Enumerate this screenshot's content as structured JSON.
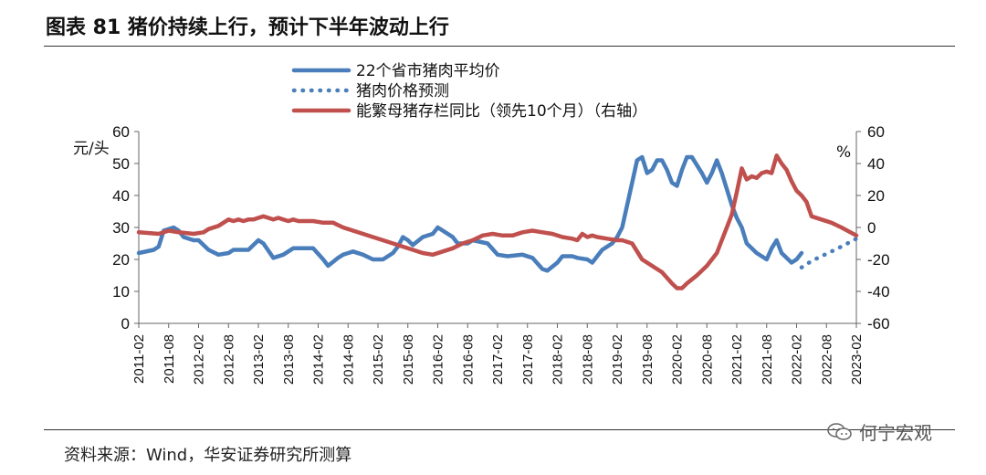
{
  "header": {
    "title": "图表 81 猪价持续上行，预计下半年波动上行"
  },
  "footer": {
    "source": "资料来源：Wind，华安证券研究所测算",
    "watermark": "何宁宏观"
  },
  "chart_data": {
    "type": "line",
    "left_axis": {
      "unit": "元/头",
      "range": [
        0,
        60
      ],
      "ticks": [
        0,
        10,
        20,
        30,
        40,
        50,
        60
      ]
    },
    "right_axis": {
      "unit": "%",
      "range": [
        -60,
        60
      ],
      "ticks": [
        -60,
        -40,
        -20,
        0,
        20,
        40,
        60
      ]
    },
    "x_tick_labels": [
      "2011-02",
      "2011-08",
      "2012-02",
      "2012-08",
      "2013-02",
      "2013-08",
      "2014-02",
      "2014-08",
      "2015-02",
      "2015-08",
      "2016-02",
      "2016-08",
      "2017-02",
      "2017-08",
      "2018-02",
      "2018-08",
      "2019-02",
      "2019-08",
      "2020-02",
      "2020-08",
      "2021-02",
      "2021-08",
      "2022-02",
      "2022-08",
      "2023-02"
    ],
    "x_range_months": [
      0,
      144
    ],
    "series": [
      {
        "name": "22个省市猪肉平均价",
        "axis": "left",
        "color": "#4a7ebb",
        "style": "solid",
        "points": [
          [
            0,
            22
          ],
          [
            3,
            23
          ],
          [
            4,
            24
          ],
          [
            5,
            29
          ],
          [
            7,
            30
          ],
          [
            8,
            29
          ],
          [
            9,
            27
          ],
          [
            11,
            26
          ],
          [
            12,
            26
          ],
          [
            14,
            23
          ],
          [
            16,
            21.5
          ],
          [
            18,
            22
          ],
          [
            19,
            23
          ],
          [
            22,
            23
          ],
          [
            24,
            26
          ],
          [
            25,
            25
          ],
          [
            27,
            20.5
          ],
          [
            29,
            21.5
          ],
          [
            31,
            23.5
          ],
          [
            33,
            23.5
          ],
          [
            35,
            23.5
          ],
          [
            37,
            20
          ],
          [
            38,
            18
          ],
          [
            40,
            20.5
          ],
          [
            41,
            21.5
          ],
          [
            43,
            22.5
          ],
          [
            45,
            21.5
          ],
          [
            47,
            20
          ],
          [
            49,
            20
          ],
          [
            51,
            22
          ],
          [
            52,
            24
          ],
          [
            53,
            27
          ],
          [
            54,
            26
          ],
          [
            55,
            24.5
          ],
          [
            57,
            27
          ],
          [
            59,
            28
          ],
          [
            60,
            30
          ],
          [
            61,
            29
          ],
          [
            63,
            27
          ],
          [
            64,
            25
          ],
          [
            66,
            25
          ],
          [
            67,
            26
          ],
          [
            70,
            25
          ],
          [
            72,
            21.5
          ],
          [
            74,
            21
          ],
          [
            77,
            21.5
          ],
          [
            79,
            20.5
          ],
          [
            81,
            17
          ],
          [
            82,
            16.5
          ],
          [
            84,
            19
          ],
          [
            85,
            21
          ],
          [
            87,
            21
          ],
          [
            88,
            20.5
          ],
          [
            90,
            20
          ],
          [
            91,
            19
          ],
          [
            93,
            23
          ],
          [
            95,
            25
          ],
          [
            96,
            27
          ],
          [
            97,
            30
          ],
          [
            99,
            44
          ],
          [
            100,
            51
          ],
          [
            101,
            52
          ],
          [
            102,
            47
          ],
          [
            103,
            48
          ],
          [
            104,
            51
          ],
          [
            105,
            51
          ],
          [
            106,
            48
          ],
          [
            107,
            44
          ],
          [
            108,
            43
          ],
          [
            109,
            48
          ],
          [
            110,
            52
          ],
          [
            111,
            52
          ],
          [
            113,
            47
          ],
          [
            114,
            44
          ],
          [
            115,
            47
          ],
          [
            116,
            51
          ],
          [
            117,
            47
          ],
          [
            118,
            42
          ],
          [
            119,
            37
          ],
          [
            120,
            33
          ],
          [
            121,
            30
          ],
          [
            122,
            25
          ],
          [
            124,
            22
          ],
          [
            126,
            20
          ],
          [
            127,
            23.5
          ],
          [
            128,
            26
          ],
          [
            129,
            22
          ],
          [
            131,
            19
          ],
          [
            132,
            20
          ],
          [
            133,
            22
          ]
        ]
      },
      {
        "name": "猪肉价格预测",
        "axis": "left",
        "color": "#4a7ebb",
        "style": "dotted",
        "points": [
          [
            133,
            17.5
          ],
          [
            135,
            19.5
          ],
          [
            137,
            21
          ],
          [
            139,
            22.5
          ],
          [
            141,
            24
          ],
          [
            144,
            26.5
          ]
        ]
      },
      {
        "name": "能繁母猪存栏同比（领先10个月）（右轴）",
        "axis": "right",
        "color": "#c0504d",
        "style": "solid",
        "points": [
          [
            0,
            -3
          ],
          [
            4,
            -4
          ],
          [
            6,
            -2
          ],
          [
            8,
            -3
          ],
          [
            11,
            -4
          ],
          [
            13,
            -3
          ],
          [
            14,
            -1
          ],
          [
            16,
            1
          ],
          [
            17,
            3
          ],
          [
            18,
            5
          ],
          [
            19,
            4
          ],
          [
            20,
            5
          ],
          [
            21,
            4
          ],
          [
            22,
            5
          ],
          [
            23,
            5
          ],
          [
            24,
            6
          ],
          [
            25,
            7
          ],
          [
            26,
            6
          ],
          [
            27,
            5
          ],
          [
            28,
            6
          ],
          [
            29,
            5
          ],
          [
            30,
            4
          ],
          [
            31,
            5
          ],
          [
            32,
            4
          ],
          [
            33,
            4
          ],
          [
            35,
            4
          ],
          [
            37,
            3
          ],
          [
            39,
            3
          ],
          [
            41,
            0
          ],
          [
            43,
            -2
          ],
          [
            45,
            -4
          ],
          [
            47,
            -6
          ],
          [
            49,
            -8
          ],
          [
            51,
            -10
          ],
          [
            53,
            -12
          ],
          [
            55,
            -14
          ],
          [
            57,
            -16
          ],
          [
            59,
            -17
          ],
          [
            61,
            -15
          ],
          [
            63,
            -13
          ],
          [
            65,
            -10
          ],
          [
            67,
            -8
          ],
          [
            69,
            -5
          ],
          [
            71,
            -4
          ],
          [
            73,
            -5
          ],
          [
            75,
            -5
          ],
          [
            77,
            -3
          ],
          [
            79,
            -2
          ],
          [
            81,
            -3
          ],
          [
            83,
            -4
          ],
          [
            85,
            -6
          ],
          [
            87,
            -7
          ],
          [
            88,
            -8
          ],
          [
            89,
            -4
          ],
          [
            90,
            -6
          ],
          [
            91,
            -5
          ],
          [
            92,
            -6
          ],
          [
            94,
            -7
          ],
          [
            96,
            -8
          ],
          [
            97,
            -8
          ],
          [
            99,
            -10
          ],
          [
            101,
            -20
          ],
          [
            103,
            -24
          ],
          [
            105,
            -28
          ],
          [
            107,
            -35
          ],
          [
            108,
            -38
          ],
          [
            109,
            -38
          ],
          [
            110,
            -35
          ],
          [
            112,
            -30
          ],
          [
            114,
            -24
          ],
          [
            116,
            -16
          ],
          [
            117,
            -8
          ],
          [
            118,
            0
          ],
          [
            119,
            8
          ],
          [
            120,
            22
          ],
          [
            121,
            37
          ],
          [
            122,
            30
          ],
          [
            123,
            32
          ],
          [
            124,
            31
          ],
          [
            125,
            34
          ],
          [
            126,
            35
          ],
          [
            127,
            34
          ],
          [
            128,
            45
          ],
          [
            129,
            40
          ],
          [
            130,
            36
          ],
          [
            131,
            29
          ],
          [
            132,
            23
          ],
          [
            133,
            20
          ],
          [
            134,
            16
          ],
          [
            135,
            7
          ],
          [
            137,
            5
          ],
          [
            139,
            3
          ],
          [
            141,
            0
          ],
          [
            144,
            -5
          ]
        ]
      }
    ]
  }
}
